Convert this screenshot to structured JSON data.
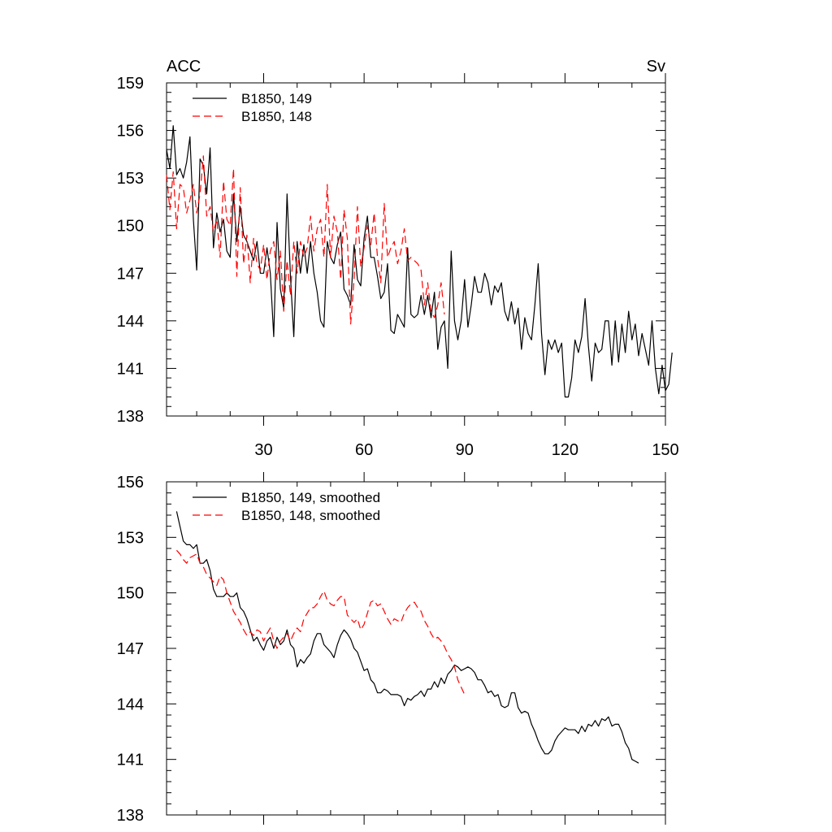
{
  "chart_data": [
    {
      "type": "line",
      "left_label": "ACC",
      "right_label": "Sv",
      "xlim": [
        1,
        150
      ],
      "ylim": [
        138,
        159
      ],
      "yticks": [
        138,
        141,
        144,
        147,
        150,
        153,
        156,
        159
      ],
      "xticks": [
        30,
        60,
        90,
        120,
        150
      ],
      "show_xtick_labels": true,
      "grid": false,
      "legend": "top-left",
      "series": [
        {
          "name": "B1850, 149",
          "color": "#000000",
          "dash": "solid",
          "x_start": 1,
          "values": [
            154.8,
            153.6,
            156.3,
            153.2,
            153.6,
            153.0,
            154.0,
            155.6,
            150.4,
            147.2,
            154.2,
            153.8,
            152.0,
            154.9,
            148.6,
            150.8,
            149.6,
            150.4,
            148.4,
            148.0,
            152.0,
            149.0,
            151.2,
            149.4,
            149.0,
            148.4,
            147.8,
            149.0,
            147.0,
            147.0,
            148.6,
            147.0,
            143.0,
            150.2,
            146.0,
            144.8,
            152.0,
            146.8,
            143.0,
            149.0,
            147.0,
            148.8,
            147.0,
            149.0,
            147.0,
            145.8,
            144.0,
            143.6,
            149.0,
            148.0,
            147.6,
            148.8,
            149.6,
            146.0,
            145.6,
            145.0,
            148.8,
            146.6,
            146.2,
            149.2,
            150.6,
            148.0,
            148.0,
            146.8,
            145.4,
            145.8,
            147.6,
            143.4,
            143.2,
            144.4,
            144.0,
            143.6,
            148.6,
            144.4,
            144.2,
            144.4,
            145.6,
            144.4,
            145.6,
            144.2,
            145.8,
            142.2,
            143.6,
            144.0,
            141.0,
            148.4,
            144.0,
            142.8,
            144.0,
            146.6,
            143.6,
            145.0,
            146.8,
            145.8,
            145.8,
            147.0,
            146.4,
            145.0,
            146.2,
            145.8,
            146.4,
            144.6,
            144.0,
            145.2,
            143.8,
            144.8,
            142.2,
            144.2,
            143.2,
            142.8,
            145.0,
            147.6,
            143.2,
            140.6,
            142.8,
            142.2,
            142.8,
            142.0,
            142.6,
            139.2,
            139.2,
            140.4,
            142.8,
            142.0,
            143.0,
            145.4,
            142.4,
            140.2,
            142.6,
            142.0,
            142.2,
            144.0,
            144.0,
            141.2,
            144.0,
            141.4,
            143.8,
            142.0,
            144.6,
            142.8,
            143.8,
            141.8,
            143.2,
            142.2,
            141.2,
            144.0,
            141.0,
            139.4,
            141.2,
            139.6,
            140.0,
            142.0
          ]
        },
        {
          "name": "B1850, 148",
          "color": "#ff0000",
          "dash": "dashed",
          "x_start": 1,
          "values": [
            153.2,
            151.0,
            153.4,
            149.8,
            152.6,
            152.4,
            150.8,
            151.6,
            152.6,
            150.8,
            152.0,
            154.4,
            150.6,
            151.2,
            149.6,
            150.4,
            148.0,
            152.8,
            150.4,
            150.0,
            153.6,
            146.8,
            152.4,
            147.6,
            149.4,
            146.4,
            149.2,
            147.6,
            147.2,
            148.8,
            146.6,
            148.4,
            149.0,
            146.6,
            148.4,
            144.6,
            147.8,
            145.6,
            149.0,
            147.0,
            149.0,
            148.0,
            148.6,
            150.6,
            148.4,
            149.8,
            150.4,
            148.0,
            152.6,
            148.0,
            150.6,
            149.6,
            146.6,
            151.0,
            149.2,
            143.8,
            146.6,
            151.2,
            147.4,
            148.6,
            150.0,
            148.8,
            150.8,
            148.0,
            146.4,
            151.4,
            148.0,
            148.6,
            149.0,
            147.6,
            148.4,
            149.8,
            147.8,
            148.0,
            147.8,
            147.6,
            147.2,
            145.0,
            146.4,
            144.6,
            144.2,
            145.0,
            146.4,
            144.4
          ]
        }
      ]
    },
    {
      "type": "line",
      "xlim": [
        1,
        150
      ],
      "ylim": [
        138,
        156
      ],
      "yticks": [
        138,
        141,
        144,
        147,
        150,
        153,
        156
      ],
      "xticks": [
        30,
        60,
        90,
        120,
        150
      ],
      "show_xtick_labels": false,
      "grid": false,
      "legend": "top-left",
      "series": [
        {
          "name": "B1850, 149, smoothed",
          "color": "#000000",
          "dash": "solid",
          "x_start": 4,
          "values": [
            154.4,
            153.6,
            152.8,
            152.6,
            152.6,
            152.4,
            152.6,
            151.6,
            151.6,
            151.8,
            151.2,
            150.2,
            149.8,
            149.8,
            149.8,
            150.0,
            149.8,
            149.8,
            150.0,
            149.2,
            149.0,
            148.6,
            148.0,
            147.4,
            147.6,
            147.2,
            146.9,
            147.4,
            147.6,
            147.0,
            147.6,
            147.2,
            147.4,
            148.0,
            147.2,
            147.0,
            146.0,
            146.4,
            146.2,
            146.5,
            146.7,
            147.4,
            147.8,
            147.8,
            147.2,
            147.0,
            146.8,
            146.5,
            147.2,
            147.7,
            148.0,
            147.8,
            147.5,
            147.0,
            146.8,
            146.3,
            145.8,
            145.9,
            145.3,
            145.1,
            144.6,
            144.6,
            144.8,
            144.7,
            144.5,
            144.5,
            144.5,
            144.4,
            143.9,
            144.3,
            144.2,
            144.4,
            144.5,
            144.7,
            144.4,
            144.8,
            144.8,
            145.2,
            144.9,
            145.4,
            145.1,
            145.6,
            145.8,
            146.1,
            146.0,
            145.8,
            145.9,
            146.0,
            145.9,
            145.7,
            145.3,
            145.3,
            145.0,
            144.6,
            144.7,
            144.4,
            144.5,
            143.9,
            143.8,
            143.9,
            144.6,
            144.6,
            143.8,
            143.5,
            143.6,
            143.5,
            142.9,
            142.5,
            142.0,
            141.6,
            141.3,
            141.3,
            141.5,
            142.0,
            142.3,
            142.5,
            142.7,
            142.6,
            142.6,
            142.6,
            142.4,
            142.8,
            142.5,
            142.9,
            142.8,
            143.1,
            142.8,
            143.2,
            143.1,
            143.3,
            142.8,
            142.9,
            142.9,
            142.5,
            141.9,
            141.6,
            141.0,
            140.9,
            140.8
          ]
        },
        {
          "name": "B1850, 148, smoothed",
          "color": "#ff0000",
          "dash": "dashed",
          "x_start": 4,
          "values": [
            152.3,
            152.1,
            151.8,
            151.6,
            151.9,
            152.0,
            152.1,
            151.6,
            151.4,
            151.0,
            150.8,
            150.6,
            150.4,
            150.9,
            150.7,
            150.0,
            149.5,
            149.0,
            148.7,
            148.4,
            148.0,
            147.7,
            147.9,
            147.7,
            148.0,
            147.9,
            147.4,
            147.8,
            148.1,
            147.4,
            147.0,
            147.4,
            147.6,
            147.8,
            147.4,
            147.8,
            148.1,
            147.9,
            148.6,
            148.9,
            149.2,
            149.2,
            149.4,
            149.8,
            150.1,
            149.6,
            149.4,
            149.3,
            149.6,
            149.8,
            149.8,
            148.8,
            148.6,
            148.4,
            148.6,
            148.0,
            148.3,
            148.9,
            149.5,
            149.6,
            149.3,
            149.4,
            149.0,
            148.6,
            148.3,
            148.6,
            148.5,
            148.4,
            148.9,
            149.2,
            149.4,
            149.5,
            149.2,
            149.0,
            148.5,
            148.2,
            147.8,
            147.5,
            147.6,
            147.4,
            147.1,
            146.7,
            146.4,
            146.0,
            145.3,
            144.9,
            144.5
          ]
        }
      ]
    }
  ]
}
